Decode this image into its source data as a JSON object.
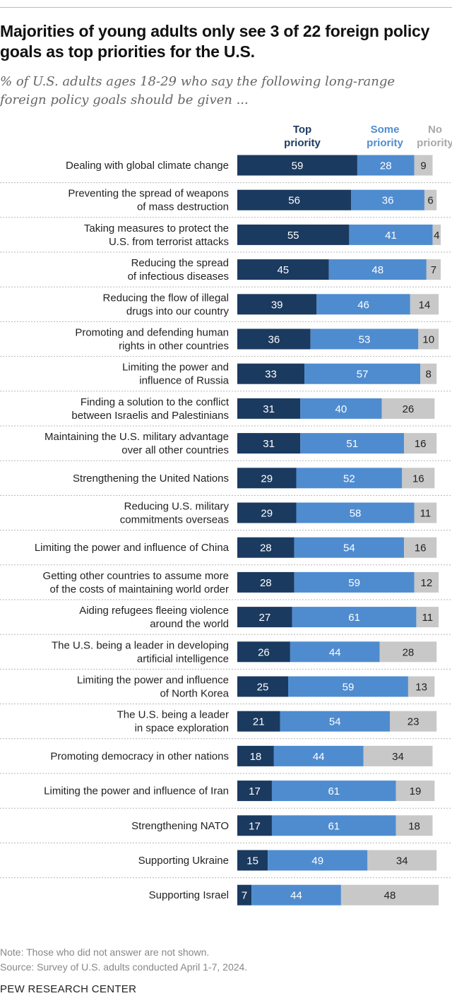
{
  "title": "Majorities of young adults only see 3 of 22 foreign policy goals as top priorities for the U.S.",
  "subtitle": "% of U.S. adults ages 18-29 who say the following long-range foreign policy goals should be given ...",
  "note": "Note: Those who did not answer are not shown.",
  "source": "Source: Survey of U.S. adults conducted April 1-7, 2024.",
  "footer": "PEW RESEARCH CENTER",
  "colors": {
    "top": "#1b3a5f",
    "some": "#4f8ccf",
    "none": "#c8c8c8",
    "some_header": "#4f8ccf",
    "none_header": "#a8a8a8"
  },
  "chart_data": {
    "type": "bar",
    "orientation": "horizontal",
    "stacked": true,
    "series": [
      {
        "name": "Top priority",
        "label_lines": [
          "Top",
          "priority"
        ],
        "values": [
          59,
          56,
          55,
          45,
          39,
          36,
          33,
          31,
          31,
          29,
          29,
          28,
          28,
          27,
          26,
          25,
          21,
          18,
          17,
          17,
          15,
          7
        ]
      },
      {
        "name": "Some priority",
        "label_lines": [
          "Some",
          "priority"
        ],
        "values": [
          28,
          36,
          41,
          48,
          46,
          53,
          57,
          40,
          51,
          52,
          58,
          54,
          59,
          61,
          44,
          59,
          54,
          44,
          61,
          61,
          49,
          44
        ]
      },
      {
        "name": "No priority",
        "label_lines": [
          "No",
          "priority"
        ],
        "values": [
          9,
          6,
          4,
          7,
          14,
          10,
          8,
          26,
          16,
          16,
          11,
          16,
          12,
          11,
          28,
          13,
          23,
          34,
          19,
          18,
          34,
          48
        ]
      }
    ],
    "categories": [
      [
        "Dealing with global climate change"
      ],
      [
        "Preventing the spread of weapons",
        "of mass destruction"
      ],
      [
        "Taking measures to protect the",
        "U.S. from terrorist attacks"
      ],
      [
        "Reducing the spread",
        "of infectious diseases"
      ],
      [
        "Reducing the flow of illegal",
        "drugs into our country"
      ],
      [
        "Promoting and defending human",
        "rights in other countries"
      ],
      [
        "Limiting the power and",
        "influence of Russia"
      ],
      [
        "Finding a solution to the conflict",
        "between Israelis and Palestinians"
      ],
      [
        "Maintaining the U.S. military advantage",
        "over all other countries"
      ],
      [
        "Strengthening the United Nations"
      ],
      [
        "Reducing U.S. military",
        "commitments overseas"
      ],
      [
        "Limiting the power and influence of China"
      ],
      [
        "Getting other countries to assume more",
        "of the costs of maintaining world order"
      ],
      [
        "Aiding refugees fleeing violence",
        "around the world"
      ],
      [
        "The U.S. being a leader in developing",
        "artificial intelligence"
      ],
      [
        "Limiting the power and influence",
        "of North Korea"
      ],
      [
        "The U.S. being a leader",
        "in space exploration"
      ],
      [
        "Promoting democracy in other nations"
      ],
      [
        "Limiting the power and influence of Iran"
      ],
      [
        "Strengthening NATO"
      ],
      [
        "Supporting Ukraine"
      ],
      [
        "Supporting Israel"
      ]
    ],
    "xlim": [
      0,
      100
    ],
    "grid": false,
    "legend": "top"
  }
}
